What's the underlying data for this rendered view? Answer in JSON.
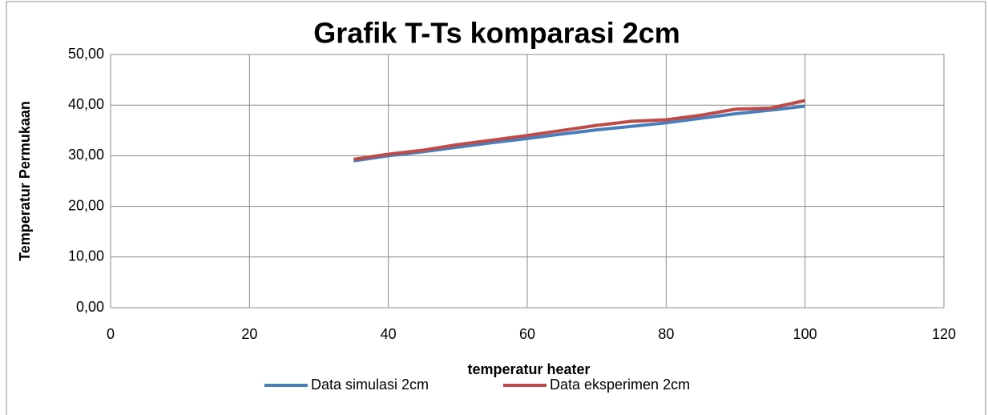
{
  "chart_data": {
    "type": "line",
    "title": "Grafik T-Ts komparasi 2cm",
    "x_label": "temperatur heater",
    "y_label": "Temperatur Permukaan",
    "x": [
      35,
      40,
      45,
      50,
      55,
      60,
      65,
      70,
      75,
      80,
      85,
      90,
      95,
      100
    ],
    "series": [
      {
        "name": "Data simulasi 2cm",
        "color": "#4a7ebb",
        "values": [
          29.0,
          30.0,
          30.8,
          31.7,
          32.6,
          33.4,
          34.3,
          35.1,
          35.8,
          36.5,
          37.4,
          38.3,
          39.0,
          39.8
        ]
      },
      {
        "name": "Data eksperimen 2cm",
        "color": "#be4b48",
        "values": [
          29.3,
          30.3,
          31.1,
          32.2,
          33.1,
          34.0,
          35.0,
          36.0,
          36.8,
          37.1,
          38.0,
          39.2,
          39.4,
          40.9
        ]
      }
    ],
    "xlim": [
      0,
      120
    ],
    "xticks": [
      0,
      20,
      40,
      60,
      80,
      100,
      120
    ],
    "ylim": [
      0,
      50
    ],
    "yticks": [
      {
        "value": 0,
        "label": "0,00"
      },
      {
        "value": 10,
        "label": "10,00"
      },
      {
        "value": 20,
        "label": "20,00"
      },
      {
        "value": 30,
        "label": "30,00"
      },
      {
        "value": 40,
        "label": "40,00"
      },
      {
        "value": 50,
        "label": "50,00"
      }
    ],
    "grid": true,
    "legend": "bottom"
  }
}
